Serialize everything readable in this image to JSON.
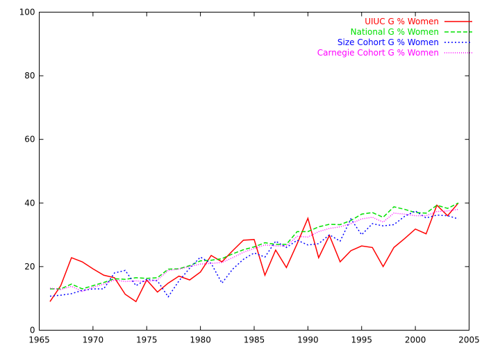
{
  "chart_data": {
    "type": "line",
    "title": "",
    "xlabel": "",
    "ylabel": "",
    "xlim": [
      1965,
      2005
    ],
    "ylim": [
      0,
      100
    ],
    "xticks": [
      1965,
      1970,
      1975,
      1980,
      1985,
      1990,
      1995,
      2000,
      2005
    ],
    "yticks": [
      0,
      20,
      40,
      60,
      80,
      100
    ],
    "grid": false,
    "legend": "top-right",
    "series": [
      {
        "name": "UIUC G % Women",
        "color": "#ff0000",
        "dash": "solid",
        "x": [
          1966,
          1967,
          1968,
          1969,
          1970,
          1971,
          1972,
          1973,
          1974,
          1975,
          1976,
          1977,
          1978,
          1979,
          1980,
          1981,
          1982,
          1983,
          1984,
          1985,
          1986,
          1987,
          1988,
          1989,
          1990,
          1991,
          1992,
          1993,
          1994,
          1995,
          1996,
          1997,
          1998,
          1999,
          2000,
          2001,
          2002,
          2003,
          2004
        ],
        "y": [
          9,
          14,
          22.8,
          21.5,
          19.3,
          17.3,
          16.5,
          11.3,
          9,
          15.8,
          12,
          14.8,
          17,
          15.8,
          18.3,
          23.5,
          21.5,
          25,
          28.3,
          28.5,
          17.3,
          25.2,
          19.7,
          27.2,
          35.2,
          22.8,
          29.8,
          21.5,
          25,
          26.5,
          26,
          20,
          26,
          28.8,
          31.8,
          30.3,
          39.3,
          36,
          40
        ]
      },
      {
        "name": "National G % Women",
        "color": "#00e000",
        "dash": "dashed",
        "x": [
          1966,
          1967,
          1968,
          1969,
          1970,
          1971,
          1972,
          1973,
          1974,
          1975,
          1976,
          1977,
          1978,
          1979,
          1980,
          1981,
          1982,
          1983,
          1984,
          1985,
          1986,
          1987,
          1988,
          1989,
          1990,
          1991,
          1992,
          1993,
          1994,
          1995,
          1996,
          1997,
          1998,
          1999,
          2000,
          2001,
          2002,
          2003,
          2004
        ],
        "y": [
          13,
          13,
          14.5,
          13,
          14,
          15,
          16.2,
          16,
          16.5,
          16.3,
          16.5,
          19.2,
          19.3,
          20.3,
          21.8,
          22,
          22.5,
          24,
          25.3,
          26.2,
          27.5,
          27,
          27,
          31,
          31,
          32.5,
          33.3,
          33.2,
          34.5,
          36.5,
          37,
          35.5,
          38.8,
          38,
          37,
          36.8,
          39.3,
          38.3,
          40
        ]
      },
      {
        "name": "Size Cohort G % Women",
        "color": "#0000ff",
        "dash": "dotted",
        "x": [
          1966,
          1967,
          1968,
          1969,
          1970,
          1971,
          1972,
          1973,
          1974,
          1975,
          1976,
          1977,
          1978,
          1979,
          1980,
          1981,
          1982,
          1983,
          1984,
          1985,
          1986,
          1987,
          1988,
          1989,
          1990,
          1991,
          1992,
          1993,
          1994,
          1995,
          1996,
          1997,
          1998,
          1999,
          2000,
          2001,
          2002,
          2003,
          2004
        ],
        "y": [
          10.7,
          11,
          11.5,
          12.5,
          13,
          13,
          18,
          18.8,
          14,
          16,
          15.5,
          10.5,
          15.5,
          19.5,
          23,
          21,
          14.8,
          19.2,
          22.3,
          24.3,
          23,
          28,
          26,
          28.3,
          26.8,
          27.2,
          30,
          28,
          35,
          30,
          33.5,
          32.8,
          33.2,
          35.8,
          37.5,
          35.3,
          36.2,
          36,
          35
        ]
      },
      {
        "name": "Carnegie Cohort G % Women",
        "color": "#ff00ff",
        "dash": "fine-dotted",
        "x": [
          1966,
          1967,
          1968,
          1969,
          1970,
          1971,
          1972,
          1973,
          1974,
          1975,
          1976,
          1977,
          1978,
          1979,
          1980,
          1981,
          1982,
          1983,
          1984,
          1985,
          1986,
          1987,
          1988,
          1989,
          1990,
          1991,
          1992,
          1993,
          1994,
          1995,
          1996,
          1997,
          1998,
          1999,
          2000,
          2001,
          2002,
          2003,
          2004
        ],
        "y": [
          13.2,
          12.8,
          13.8,
          12.2,
          13.5,
          14.5,
          15.8,
          15.3,
          15.5,
          15.3,
          15.8,
          18.8,
          19.2,
          20,
          20.8,
          21,
          21.3,
          22.8,
          24.5,
          25.7,
          26.8,
          26.5,
          26.5,
          29.5,
          29.3,
          31,
          32,
          32.5,
          33.5,
          35,
          35.5,
          34,
          36.8,
          36.5,
          36,
          36,
          37.3,
          37.5,
          38
        ]
      }
    ]
  }
}
